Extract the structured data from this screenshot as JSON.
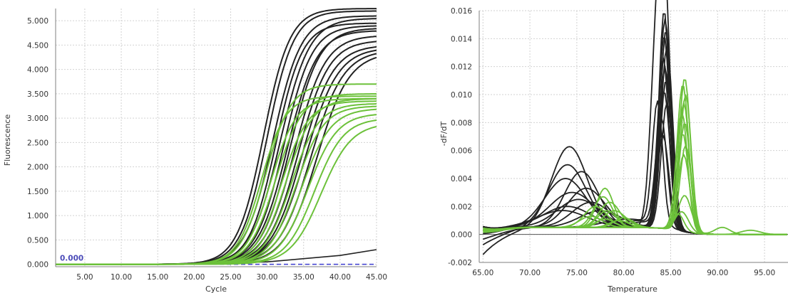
{
  "colors": {
    "series_black": "#222222",
    "series_green": "#6cc13a",
    "grid": "#d2d2d2",
    "axis": "#7f7f7f",
    "threshold": "#3c3ccf",
    "threshold_label": "#4a4ab8"
  },
  "chart_data": [
    {
      "type": "line",
      "title": "",
      "xlabel": "Cycle",
      "ylabel": "Fluorescence",
      "xlim": [
        1,
        45
      ],
      "ylim": [
        -0.05,
        5.25
      ],
      "x_ticks": [
        5,
        10,
        15,
        20,
        25,
        30,
        35,
        40,
        45
      ],
      "x_tick_labels": [
        "5.00",
        "10.00",
        "15.00",
        "20.00",
        "25.00",
        "30.00",
        "35.00",
        "40.00",
        "45.00"
      ],
      "y_ticks": [
        0,
        0.5,
        1,
        1.5,
        2,
        2.5,
        3,
        3.5,
        4,
        4.5,
        5
      ],
      "y_tick_labels": [
        "0.000",
        "0.500",
        "1.000",
        "1.500",
        "2.000",
        "2.500",
        "3.000",
        "3.500",
        "4.000",
        "4.500",
        "5.000"
      ],
      "grid": true,
      "threshold": {
        "value": 0.0,
        "label": "0.000"
      },
      "curve_model": "sigmoid: F = plateau / (1 + exp(-slope * (cycle - midpoint)))",
      "background_curves": [
        {
          "color": "series_black",
          "points": [
            [
              20,
              0.0
            ],
            [
              30,
              0.05
            ],
            [
              40,
              0.18
            ],
            [
              45,
              0.3
            ]
          ]
        }
      ],
      "series": [
        {
          "color": "series_black",
          "curves": [
            {
              "midpoint": 29.5,
              "plateau": 5.25,
              "slope": 0.55
            },
            {
              "midpoint": 30.0,
              "plateau": 5.2,
              "slope": 0.55
            },
            {
              "midpoint": 30.8,
              "plateau": 5.1,
              "slope": 0.52
            },
            {
              "midpoint": 31.2,
              "plateau": 4.95,
              "slope": 0.55
            },
            {
              "midpoint": 31.8,
              "plateau": 5.05,
              "slope": 0.5
            },
            {
              "midpoint": 32.3,
              "plateau": 4.9,
              "slope": 0.52
            },
            {
              "midpoint": 32.8,
              "plateau": 4.8,
              "slope": 0.5
            },
            {
              "midpoint": 33.2,
              "plateau": 4.85,
              "slope": 0.5
            },
            {
              "midpoint": 33.8,
              "plateau": 4.7,
              "slope": 0.48
            },
            {
              "midpoint": 34.3,
              "plateau": 4.6,
              "slope": 0.48
            },
            {
              "midpoint": 34.8,
              "plateau": 4.5,
              "slope": 0.47
            },
            {
              "midpoint": 35.3,
              "plateau": 4.45,
              "slope": 0.45
            },
            {
              "midpoint": 36.0,
              "plateau": 4.4,
              "slope": 0.45
            },
            {
              "midpoint": 36.8,
              "plateau": 4.35,
              "slope": 0.45
            }
          ]
        },
        {
          "color": "series_green",
          "curves": [
            {
              "midpoint": 29.2,
              "plateau": 3.45,
              "slope": 0.6
            },
            {
              "midpoint": 29.8,
              "plateau": 3.7,
              "slope": 0.58
            },
            {
              "midpoint": 30.5,
              "plateau": 3.4,
              "slope": 0.58
            },
            {
              "midpoint": 31.2,
              "plateau": 3.5,
              "slope": 0.55
            },
            {
              "midpoint": 32.0,
              "plateau": 3.35,
              "slope": 0.55
            },
            {
              "midpoint": 32.6,
              "plateau": 3.4,
              "slope": 0.55
            },
            {
              "midpoint": 33.3,
              "plateau": 3.3,
              "slope": 0.53
            },
            {
              "midpoint": 34.0,
              "plateau": 3.25,
              "slope": 0.53
            },
            {
              "midpoint": 34.8,
              "plateau": 3.2,
              "slope": 0.5
            },
            {
              "midpoint": 35.6,
              "plateau": 3.1,
              "slope": 0.5
            },
            {
              "midpoint": 36.5,
              "plateau": 3.0,
              "slope": 0.5
            },
            {
              "midpoint": 37.4,
              "plateau": 2.9,
              "slope": 0.48
            }
          ]
        }
      ]
    },
    {
      "type": "line",
      "title": "",
      "xlabel": "Temperature",
      "ylabel": "-dF/dT",
      "xlim": [
        64.6,
        97.5
      ],
      "ylim": [
        -0.002,
        0.016
      ],
      "x_ticks": [
        65,
        70,
        75,
        80,
        85,
        90,
        95
      ],
      "x_tick_labels": [
        "65.00",
        "70.00",
        "75.00",
        "80.00",
        "85.00",
        "90.00",
        "95.00"
      ],
      "y_ticks": [
        -0.002,
        0,
        0.002,
        0.004,
        0.006,
        0.008,
        0.01,
        0.012,
        0.014,
        0.016
      ],
      "y_tick_labels": [
        "-0.002",
        "0.000",
        "0.002",
        "0.004",
        "0.006",
        "0.008",
        "0.010",
        "0.012",
        "0.014",
        "0.016"
      ],
      "grid": true,
      "curve_model": "sum of Gaussian peaks: y = sum(height * exp(-((T - center)/width)^2 / 2))",
      "series": [
        {
          "color": "series_black",
          "curves": [
            {
              "peaks": [
                [
                  74.2,
                  0.0058,
                  1.9
                ],
                [
                  83.5,
                  0.0125,
                  0.65
                ],
                [
                  84.4,
                  0.0148,
                  0.6
                ]
              ],
              "start": -0.0015
            },
            {
              "peaks": [
                [
                  74.0,
                  0.0045,
                  2.0
                ],
                [
                  84.3,
                  0.0156,
                  0.55
                ]
              ],
              "start": -0.0008
            },
            {
              "peaks": [
                [
                  75.5,
                  0.004,
                  1.8
                ],
                [
                  84.4,
                  0.015,
                  0.6
                ]
              ],
              "start": -0.0004
            },
            {
              "peaks": [
                [
                  73.8,
                  0.0035,
                  2.2
                ],
                [
                  84.5,
                  0.0142,
                  0.6
                ]
              ],
              "start": 0.0
            },
            {
              "peaks": [
                [
                  76.0,
                  0.0028,
                  2.0
                ],
                [
                  84.3,
                  0.0138,
                  0.6
                ]
              ],
              "start": 0.0003
            },
            {
              "peaks": [
                [
                  74.5,
                  0.0025,
                  2.4
                ],
                [
                  84.6,
                  0.013,
                  0.62
                ]
              ],
              "start": 0.0004
            },
            {
              "peaks": [
                [
                  75.2,
                  0.002,
                  2.3
                ],
                [
                  84.2,
                  0.0122,
                  0.6
                ]
              ],
              "start": 0.0005
            },
            {
              "peaks": [
                [
                  76.5,
                  0.0018,
                  2.0
                ],
                [
                  84.4,
                  0.0115,
                  0.6
                ]
              ],
              "start": 0.0005
            },
            {
              "peaks": [
                [
                  74.0,
                  0.0015,
                  2.5
                ],
                [
                  84.5,
                  0.0106,
                  0.6
                ]
              ],
              "start": 0.0005
            },
            {
              "peaks": [
                [
                  77.5,
                  0.0012,
                  2.2
                ],
                [
                  84.3,
                  0.0098,
                  0.62
                ]
              ],
              "start": 0.0005
            },
            {
              "peaks": [
                [
                  73.5,
                  0.0012,
                  2.6
                ],
                [
                  84.6,
                  0.009,
                  0.6
                ]
              ],
              "start": 0.0005
            },
            {
              "peaks": [
                [
                  80.5,
                  0.0006,
                  2.5
                ],
                [
                  83.6,
                  0.0088,
                  0.55
                ]
              ],
              "start": 0.0005
            },
            {
              "peaks": [
                [
                  81.5,
                  0.0005,
                  1.5
                ],
                [
                  84.0,
                  0.0078,
                  0.6
                ]
              ],
              "start": 0.0005
            },
            {
              "peaks": [
                [
                  82.0,
                  0.0004,
                  1.5
                ],
                [
                  84.2,
                  0.0065,
                  0.6
                ]
              ],
              "start": 0.0005
            }
          ]
        },
        {
          "color": "series_green",
          "curves": [
            {
              "peaks": [
                [
                  78.0,
                  0.0028,
                  0.9
                ],
                [
                  86.5,
                  0.011,
                  0.6
                ]
              ],
              "start": 0.0004
            },
            {
              "peaks": [
                [
                  77.8,
                  0.0022,
                  1.0
                ],
                [
                  86.3,
                  0.0105,
                  0.62
                ]
              ],
              "start": 0.0003
            },
            {
              "peaks": [
                [
                  78.5,
                  0.0018,
                  1.1
                ],
                [
                  86.6,
                  0.0098,
                  0.6
                ]
              ],
              "start": 0.0003
            },
            {
              "peaks": [
                [
                  77.0,
                  0.0015,
                  1.2
                ],
                [
                  86.4,
                  0.0092,
                  0.6
                ]
              ],
              "start": 0.0002
            },
            {
              "peaks": [
                [
                  79.0,
                  0.0012,
                  1.2
                ],
                [
                  86.2,
                  0.0085,
                  0.6
                ]
              ],
              "start": 0.0002
            },
            {
              "peaks": [
                [
                  78.2,
                  0.0012,
                  1.0
                ],
                [
                  86.5,
                  0.0078,
                  0.6
                ]
              ],
              "start": 0.0002
            },
            {
              "peaks": [
                [
                  76.5,
                  0.0008,
                  1.2
                ],
                [
                  86.3,
                  0.007,
                  0.6
                ]
              ],
              "start": 0.0002
            },
            {
              "peaks": [
                [
                  78.0,
                  0.0006,
                  1.0
                ],
                [
                  86.6,
                  0.0062,
                  0.6
                ]
              ],
              "start": 0.0002
            },
            {
              "peaks": [
                [
                  79.5,
                  0.0005,
                  1.0
                ],
                [
                  86.4,
                  0.0055,
                  0.62
                ]
              ],
              "start": 0.0002
            },
            {
              "peaks": [
                [
                  86.5,
                  0.0026,
                  0.7
                ],
                [
                  90.5,
                  0.0005,
                  0.8
                ]
              ],
              "start": 0.0002
            },
            {
              "peaks": [
                [
                  86.2,
                  0.0014,
                  0.7
                ],
                [
                  93.5,
                  0.0003,
                  1.0
                ]
              ],
              "start": 0.0002
            },
            {
              "peaks": [
                [
                  80.0,
                  0.0007,
                  1.0
                ],
                [
                  85.8,
                  0.0012,
                  0.6
                ]
              ],
              "start": 0.0001
            }
          ]
        }
      ]
    }
  ]
}
